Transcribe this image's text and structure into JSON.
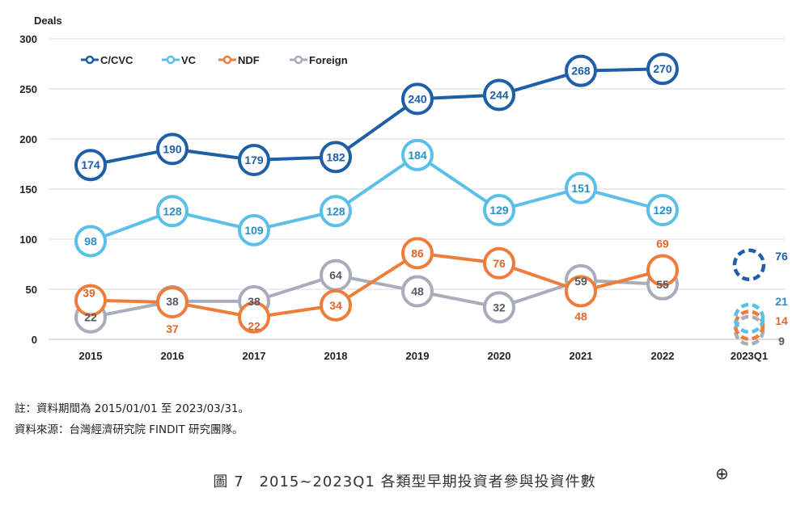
{
  "chart_data": {
    "type": "line",
    "ylabel": "Deals",
    "ylim": [
      0,
      300
    ],
    "yticks": [
      0,
      50,
      100,
      150,
      200,
      250,
      300
    ],
    "categories": [
      "2015",
      "2016",
      "2017",
      "2018",
      "2019",
      "2020",
      "2021",
      "2022",
      "2023Q1"
    ],
    "grid": true,
    "legend_position": "top-left",
    "series": [
      {
        "name": "C/CVC",
        "color": "#1f5fa8",
        "values": [
          174,
          190,
          179,
          182,
          240,
          244,
          268,
          270,
          null
        ],
        "q1_value": 76
      },
      {
        "name": "VC",
        "color": "#5bc0e8",
        "values": [
          98,
          128,
          109,
          128,
          184,
          129,
          151,
          129,
          null
        ],
        "q1_value": 21
      },
      {
        "name": "NDF",
        "color": "#ee7d3b",
        "values": [
          39,
          37,
          22,
          34,
          86,
          76,
          48,
          69,
          null
        ],
        "q1_value": 14
      },
      {
        "name": "Foreign",
        "color": "#a7adbb",
        "values": [
          22,
          38,
          38,
          64,
          48,
          32,
          59,
          55,
          null
        ],
        "q1_value": 9
      }
    ]
  },
  "notes": {
    "line1": "註：資料期間為 2015/01/01 至 2023/03/31。",
    "line2": "資料來源：台灣經濟研究院 FINDIT 研究團隊。"
  },
  "caption": "圖 7　2015~2023Q1 各類型早期投資者參與投資件數",
  "crosshair_icon": "⊕"
}
